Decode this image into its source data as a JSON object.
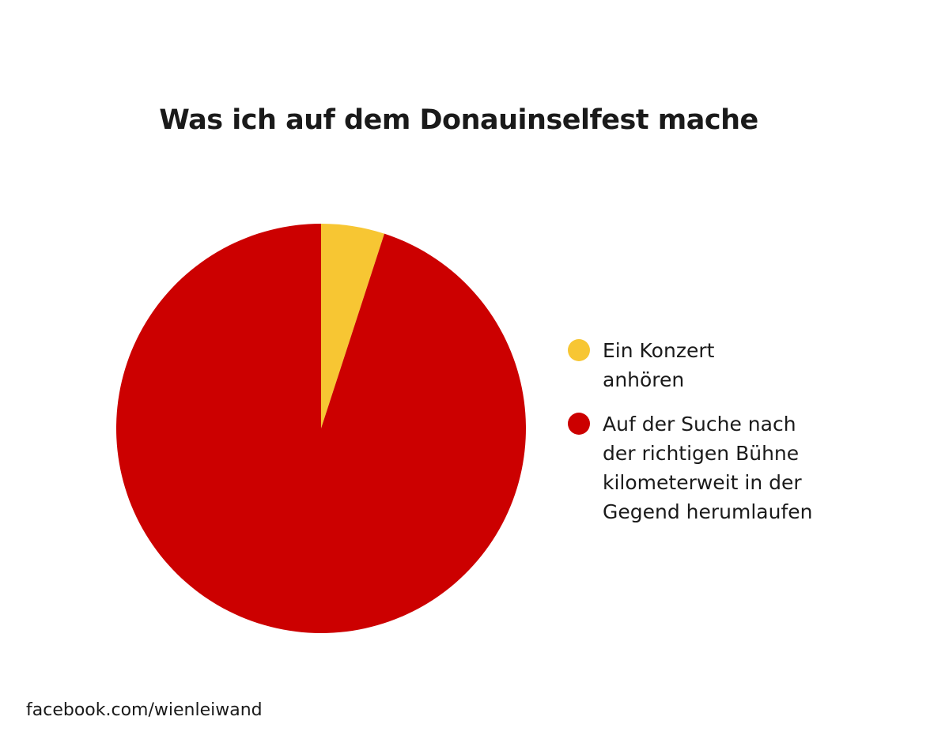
{
  "chart_data": {
    "type": "pie",
    "title": "Was ich auf dem Donauinselfest mache",
    "slices": [
      {
        "label": "Ein Konzert anhören",
        "value": 5,
        "color": "#f7c633"
      },
      {
        "label": "Auf der Suche nach der richtigen Bühne kilometerweit in der Gegend herumlaufen",
        "value": 95,
        "color": "#cc0000"
      }
    ],
    "legend_position": "right"
  },
  "source": "facebook.com/wienleiwand"
}
